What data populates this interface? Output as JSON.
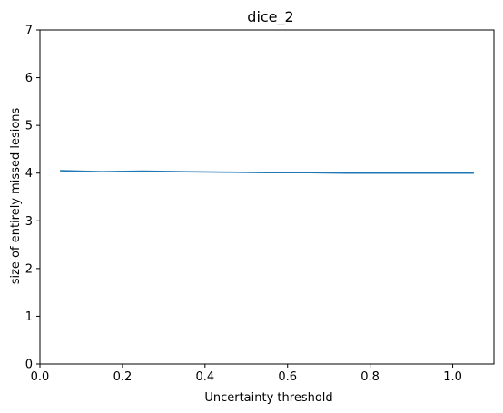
{
  "chart_data": {
    "type": "line",
    "title": "dice_2",
    "xlabel": "Uncertainty threshold",
    "ylabel": "size of entirely missed lesions",
    "xlim": [
      0.0,
      1.1
    ],
    "ylim": [
      0,
      7
    ],
    "xticks": [
      0.0,
      0.2,
      0.4,
      0.6,
      0.8,
      1.0
    ],
    "xtick_labels": [
      "0.0",
      "0.2",
      "0.4",
      "0.6",
      "0.8",
      "1.0"
    ],
    "yticks": [
      0,
      1,
      2,
      3,
      4,
      5,
      6,
      7
    ],
    "ytick_labels": [
      "0",
      "1",
      "2",
      "3",
      "4",
      "5",
      "6",
      "7"
    ],
    "grid": false,
    "series": [
      {
        "color": "#1f77b4",
        "x": [
          0.05,
          0.15,
          0.25,
          0.35,
          0.45,
          0.55,
          0.65,
          0.75,
          0.85,
          0.95,
          1.05
        ],
        "y": [
          4.05,
          4.03,
          4.04,
          4.03,
          4.02,
          4.01,
          4.01,
          4.0,
          4.0,
          4.0,
          4.0
        ]
      }
    ]
  }
}
